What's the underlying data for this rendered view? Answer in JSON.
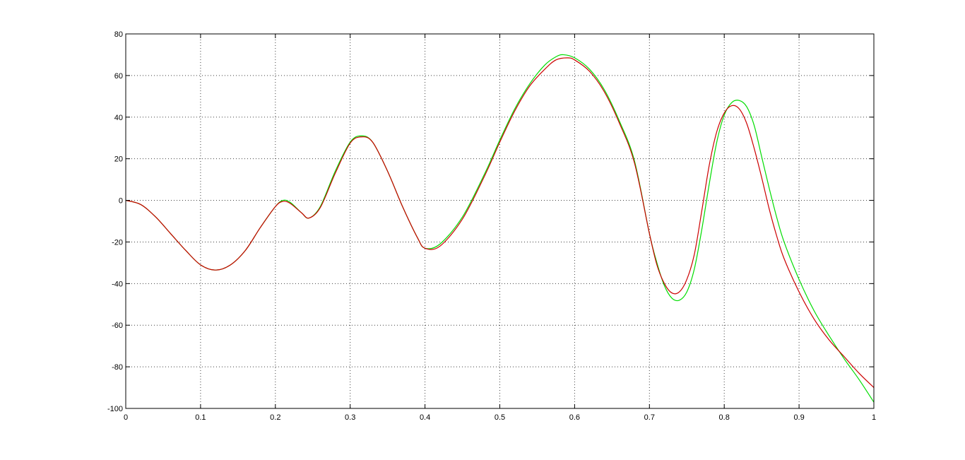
{
  "chart_data": {
    "type": "line",
    "title": "",
    "xlabel": "",
    "ylabel": "",
    "xlim": [
      0,
      1
    ],
    "ylim": [
      -100,
      80
    ],
    "grid": true,
    "x_ticks": [
      0,
      0.1,
      0.2,
      0.3,
      0.4,
      0.5,
      0.6,
      0.7,
      0.8,
      0.9,
      1
    ],
    "x_tick_labels": [
      "0",
      "0.1",
      "0.2",
      "0.3",
      "0.4",
      "0.5",
      "0.6",
      "0.7",
      "0.8",
      "0.9",
      "1"
    ],
    "y_ticks": [
      80,
      60,
      40,
      20,
      0,
      -20,
      -40,
      -60,
      -80,
      -100
    ],
    "y_tick_labels": [
      "80",
      "60",
      "40",
      "20",
      "0",
      "-20",
      "-40",
      "-60",
      "-80",
      "-100"
    ],
    "series": [
      {
        "color": "#00dd00",
        "points": [
          [
            0,
            0
          ],
          [
            0.02,
            -2
          ],
          [
            0.04,
            -8
          ],
          [
            0.06,
            -16
          ],
          [
            0.08,
            -24
          ],
          [
            0.1,
            -31
          ],
          [
            0.12,
            -33.5
          ],
          [
            0.14,
            -31
          ],
          [
            0.16,
            -24
          ],
          [
            0.18,
            -13
          ],
          [
            0.2,
            -3
          ],
          [
            0.21,
            0
          ],
          [
            0.22,
            -1
          ],
          [
            0.235,
            -6
          ],
          [
            0.245,
            -8.5
          ],
          [
            0.26,
            -3
          ],
          [
            0.28,
            14
          ],
          [
            0.3,
            28
          ],
          [
            0.315,
            31
          ],
          [
            0.33,
            28
          ],
          [
            0.35,
            14
          ],
          [
            0.37,
            -3
          ],
          [
            0.39,
            -18
          ],
          [
            0.4,
            -23
          ],
          [
            0.42,
            -21
          ],
          [
            0.45,
            -8
          ],
          [
            0.48,
            13
          ],
          [
            0.5,
            29
          ],
          [
            0.52,
            44
          ],
          [
            0.54,
            56
          ],
          [
            0.56,
            65
          ],
          [
            0.575,
            69
          ],
          [
            0.585,
            70
          ],
          [
            0.6,
            68.5
          ],
          [
            0.62,
            63
          ],
          [
            0.64,
            53
          ],
          [
            0.66,
            38
          ],
          [
            0.68,
            19
          ],
          [
            0.7,
            -16
          ],
          [
            0.71,
            -30
          ],
          [
            0.72,
            -41
          ],
          [
            0.73,
            -47
          ],
          [
            0.74,
            -48
          ],
          [
            0.75,
            -44
          ],
          [
            0.76,
            -33
          ],
          [
            0.77,
            -14
          ],
          [
            0.78,
            8
          ],
          [
            0.79,
            28
          ],
          [
            0.8,
            41
          ],
          [
            0.81,
            47
          ],
          [
            0.82,
            48
          ],
          [
            0.83,
            45
          ],
          [
            0.84,
            36
          ],
          [
            0.85,
            21
          ],
          [
            0.86,
            6
          ],
          [
            0.87,
            -8
          ],
          [
            0.88,
            -20
          ],
          [
            0.9,
            -38
          ],
          [
            0.92,
            -53
          ],
          [
            0.94,
            -65
          ],
          [
            0.96,
            -76
          ],
          [
            0.98,
            -86
          ],
          [
            1,
            -97
          ]
        ]
      },
      {
        "color": "#cc0000",
        "points": [
          [
            0,
            0
          ],
          [
            0.02,
            -2
          ],
          [
            0.04,
            -8
          ],
          [
            0.06,
            -16
          ],
          [
            0.08,
            -24
          ],
          [
            0.1,
            -31
          ],
          [
            0.12,
            -33.5
          ],
          [
            0.14,
            -31
          ],
          [
            0.16,
            -24
          ],
          [
            0.18,
            -13
          ],
          [
            0.2,
            -3
          ],
          [
            0.21,
            -0.5
          ],
          [
            0.22,
            -1.5
          ],
          [
            0.235,
            -6
          ],
          [
            0.245,
            -8.5
          ],
          [
            0.26,
            -3.5
          ],
          [
            0.28,
            13
          ],
          [
            0.3,
            27.5
          ],
          [
            0.315,
            30.5
          ],
          [
            0.33,
            28
          ],
          [
            0.35,
            14
          ],
          [
            0.37,
            -3
          ],
          [
            0.39,
            -18
          ],
          [
            0.4,
            -23
          ],
          [
            0.42,
            -22
          ],
          [
            0.45,
            -9
          ],
          [
            0.48,
            12
          ],
          [
            0.5,
            28
          ],
          [
            0.52,
            43
          ],
          [
            0.54,
            55
          ],
          [
            0.56,
            63
          ],
          [
            0.575,
            67.5
          ],
          [
            0.59,
            68.5
          ],
          [
            0.6,
            67.5
          ],
          [
            0.62,
            62
          ],
          [
            0.64,
            52
          ],
          [
            0.66,
            37
          ],
          [
            0.68,
            18
          ],
          [
            0.7,
            -16
          ],
          [
            0.71,
            -31
          ],
          [
            0.72,
            -40
          ],
          [
            0.73,
            -44.5
          ],
          [
            0.74,
            -44
          ],
          [
            0.75,
            -38
          ],
          [
            0.76,
            -26
          ],
          [
            0.77,
            -5
          ],
          [
            0.78,
            17
          ],
          [
            0.79,
            33
          ],
          [
            0.8,
            42
          ],
          [
            0.81,
            45.5
          ],
          [
            0.82,
            44
          ],
          [
            0.83,
            37
          ],
          [
            0.84,
            25
          ],
          [
            0.85,
            11
          ],
          [
            0.86,
            -4
          ],
          [
            0.87,
            -17
          ],
          [
            0.88,
            -28
          ],
          [
            0.9,
            -44
          ],
          [
            0.92,
            -57
          ],
          [
            0.94,
            -67
          ],
          [
            0.96,
            -75
          ],
          [
            0.98,
            -83
          ],
          [
            1,
            -90
          ]
        ]
      }
    ]
  }
}
